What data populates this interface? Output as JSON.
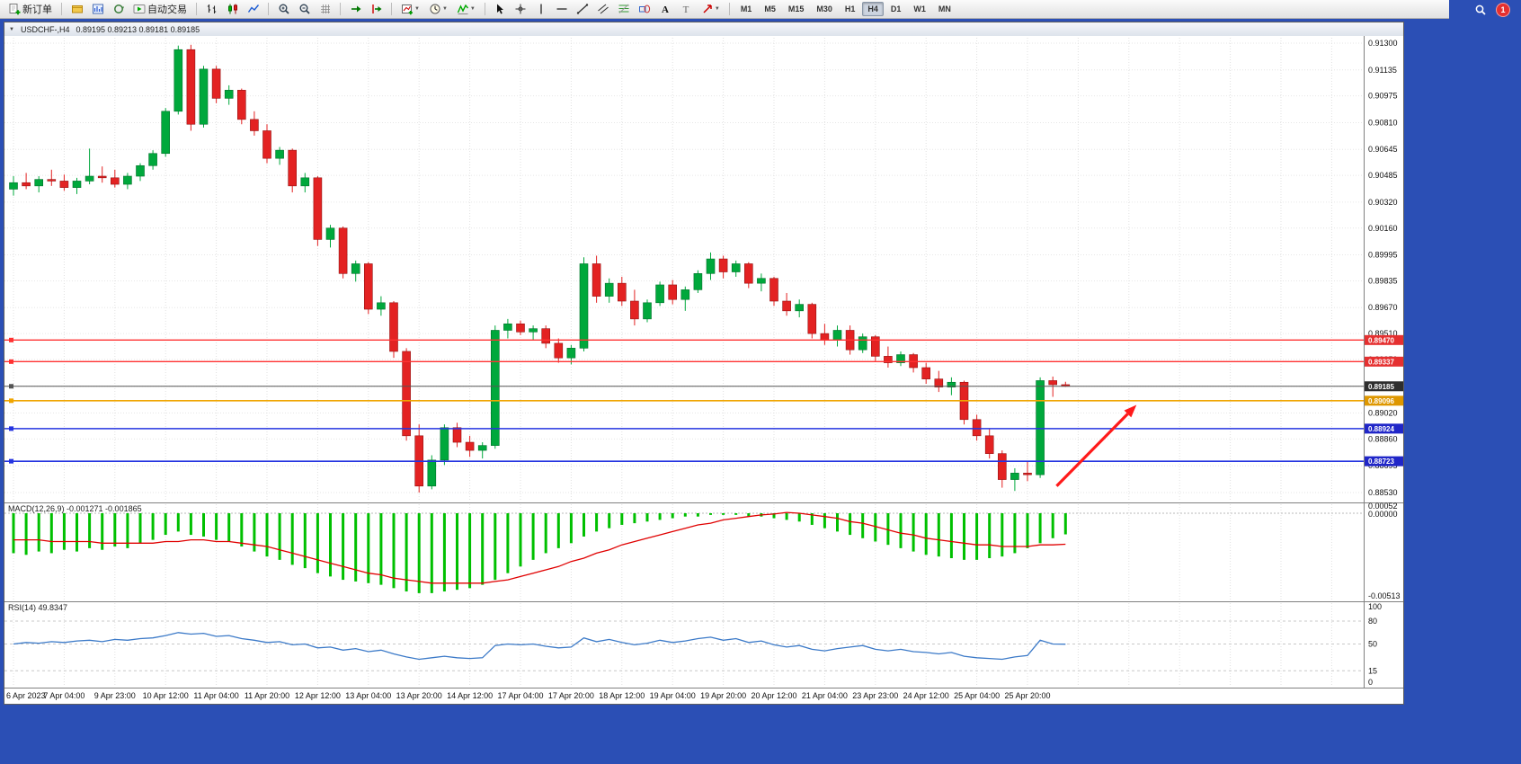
{
  "toolbar": {
    "new_order_label": "新订单",
    "autotrading_label": "自动交易",
    "buttons_groups": [
      [
        {
          "name": "new-order",
          "icon": "new-order",
          "label": "新订单"
        }
      ],
      [
        {
          "name": "charts-profile",
          "icon": "profile"
        },
        {
          "name": "market-watch",
          "icon": "market-watch"
        },
        {
          "name": "refresh",
          "icon": "refresh"
        },
        {
          "name": "autotrading",
          "icon": "autotrading",
          "label": "自动交易"
        }
      ],
      [
        {
          "name": "bar-chart",
          "icon": "bar-chart"
        },
        {
          "name": "candlestick-chart",
          "icon": "candles"
        },
        {
          "name": "line-chart",
          "icon": "line-chart"
        }
      ],
      [
        {
          "name": "zoom-in",
          "icon": "zoom-in"
        },
        {
          "name": "zoom-out",
          "icon": "zoom-out"
        },
        {
          "name": "grid",
          "icon": "grid"
        }
      ],
      [
        {
          "name": "auto-scroll",
          "icon": "auto-scroll"
        },
        {
          "name": "chart-shift",
          "icon": "chart-shift"
        }
      ],
      [
        {
          "name": "new-chart",
          "icon": "new-chart",
          "caret": true
        },
        {
          "name": "time-periods",
          "icon": "clock",
          "caret": true
        },
        {
          "name": "indicators",
          "icon": "indicators",
          "caret": true
        }
      ],
      [
        {
          "name": "cursor",
          "icon": "cursor"
        },
        {
          "name": "crosshair",
          "icon": "crosshair"
        },
        {
          "name": "vertical-line",
          "icon": "vline"
        },
        {
          "name": "horizontal-line",
          "icon": "hline"
        },
        {
          "name": "trendline",
          "icon": "trendline"
        },
        {
          "name": "equidistant-channel",
          "icon": "channel"
        },
        {
          "name": "fibonacci",
          "icon": "fibo"
        },
        {
          "name": "shapes",
          "icon": "shapes"
        },
        {
          "name": "text",
          "icon": "text"
        },
        {
          "name": "text-label",
          "icon": "label"
        },
        {
          "name": "arrows",
          "icon": "arrow-tool",
          "caret": true
        }
      ]
    ],
    "timeframes": [
      "M1",
      "M5",
      "M15",
      "M30",
      "H1",
      "H4",
      "D1",
      "W1",
      "MN"
    ],
    "active_timeframe": "H4",
    "notification_count": "1"
  },
  "chart_window": {
    "symbol_period": "USDCHF-,H4",
    "ohlc": "0.89195 0.89213 0.89181 0.89185"
  },
  "chart_data": {
    "type": "candlestick",
    "symbol": "USDCHF-",
    "timeframe": "H4",
    "price_axis": {
      "ticks": [
        "0.91300",
        "0.91135",
        "0.90975",
        "0.90810",
        "0.90645",
        "0.90485",
        "0.90320",
        "0.90160",
        "0.89995",
        "0.89835",
        "0.89670",
        "0.89510",
        "0.89350",
        "0.89185",
        "0.89020",
        "0.88860",
        "0.88695",
        "0.88530"
      ]
    },
    "x_labels": [
      "6 Apr 2023",
      "7 Apr 04:00",
      "9 Apr 23:00",
      "10 Apr 12:00",
      "11 Apr 04:00",
      "11 Apr 20:00",
      "12 Apr 12:00",
      "13 Apr 04:00",
      "13 Apr 20:00",
      "14 Apr 12:00",
      "17 Apr 04:00",
      "17 Apr 20:00",
      "18 Apr 12:00",
      "19 Apr 04:00",
      "19 Apr 20:00",
      "20 Apr 12:00",
      "21 Apr 04:00",
      "23 Apr 23:00",
      "24 Apr 12:00",
      "25 Apr 04:00",
      "25 Apr 20:00"
    ],
    "candles": [
      [
        0.904,
        0.9048,
        0.9036,
        0.9044
      ],
      [
        0.9044,
        0.905,
        0.904,
        0.9042
      ],
      [
        0.9042,
        0.9048,
        0.9038,
        0.9046
      ],
      [
        0.9046,
        0.9052,
        0.9042,
        0.9045
      ],
      [
        0.9045,
        0.9049,
        0.9039,
        0.9041
      ],
      [
        0.9041,
        0.9047,
        0.9037,
        0.9045
      ],
      [
        0.9045,
        0.9065,
        0.9043,
        0.9048
      ],
      [
        0.9048,
        0.9054,
        0.9044,
        0.9047
      ],
      [
        0.9047,
        0.9052,
        0.9041,
        0.9043
      ],
      [
        0.9043,
        0.905,
        0.904,
        0.9048
      ],
      [
        0.9048,
        0.9056,
        0.9045,
        0.90545
      ],
      [
        0.90545,
        0.9064,
        0.9052,
        0.9062
      ],
      [
        0.9062,
        0.909,
        0.906,
        0.9088
      ],
      [
        0.9088,
        0.91285,
        0.9086,
        0.9126
      ],
      [
        0.9126,
        0.9129,
        0.9076,
        0.908
      ],
      [
        0.908,
        0.9116,
        0.9078,
        0.9114
      ],
      [
        0.9114,
        0.9116,
        0.9093,
        0.9096
      ],
      [
        0.9096,
        0.9104,
        0.9092,
        0.9101
      ],
      [
        0.9101,
        0.9102,
        0.908,
        0.9083
      ],
      [
        0.9083,
        0.9088,
        0.9073,
        0.9076
      ],
      [
        0.9076,
        0.908,
        0.9056,
        0.9059
      ],
      [
        0.9059,
        0.9066,
        0.9055,
        0.9064
      ],
      [
        0.9064,
        0.9065,
        0.9038,
        0.9042
      ],
      [
        0.9042,
        0.905,
        0.9038,
        0.9047
      ],
      [
        0.9047,
        0.9048,
        0.9005,
        0.9009
      ],
      [
        0.9009,
        0.9018,
        0.9004,
        0.9016
      ],
      [
        0.9016,
        0.9017,
        0.8985,
        0.8988
      ],
      [
        0.8988,
        0.8996,
        0.8983,
        0.8994
      ],
      [
        0.8994,
        0.8995,
        0.8963,
        0.8966
      ],
      [
        0.8966,
        0.8974,
        0.8962,
        0.897
      ],
      [
        0.897,
        0.8971,
        0.8936,
        0.894
      ],
      [
        0.894,
        0.8942,
        0.8885,
        0.8888
      ],
      [
        0.8888,
        0.8895,
        0.8853,
        0.8857
      ],
      [
        0.8857,
        0.8876,
        0.8855,
        0.8873
      ],
      [
        0.8873,
        0.8895,
        0.887,
        0.8893
      ],
      [
        0.8893,
        0.8896,
        0.8881,
        0.8884
      ],
      [
        0.8884,
        0.8888,
        0.8875,
        0.8879
      ],
      [
        0.8879,
        0.8884,
        0.8874,
        0.8882
      ],
      [
        0.8882,
        0.8956,
        0.888,
        0.8953
      ],
      [
        0.8953,
        0.896,
        0.8948,
        0.8957
      ],
      [
        0.8957,
        0.8959,
        0.895,
        0.8952
      ],
      [
        0.8952,
        0.8956,
        0.8947,
        0.8954
      ],
      [
        0.8954,
        0.8956,
        0.8942,
        0.8945
      ],
      [
        0.8945,
        0.8948,
        0.8933,
        0.8936
      ],
      [
        0.8936,
        0.8944,
        0.8932,
        0.8942
      ],
      [
        0.8942,
        0.8998,
        0.894,
        0.8994
      ],
      [
        0.8994,
        0.8999,
        0.897,
        0.8974
      ],
      [
        0.8974,
        0.8985,
        0.897,
        0.8982
      ],
      [
        0.8982,
        0.8986,
        0.8968,
        0.8971
      ],
      [
        0.8971,
        0.8978,
        0.8956,
        0.896
      ],
      [
        0.896,
        0.8972,
        0.8958,
        0.897
      ],
      [
        0.897,
        0.8983,
        0.8968,
        0.8981
      ],
      [
        0.8981,
        0.8984,
        0.8969,
        0.8972
      ],
      [
        0.8972,
        0.898,
        0.8965,
        0.8978
      ],
      [
        0.8978,
        0.899,
        0.8976,
        0.8988
      ],
      [
        0.8988,
        0.9001,
        0.8984,
        0.8997
      ],
      [
        0.8997,
        0.8999,
        0.8985,
        0.8989
      ],
      [
        0.8989,
        0.8996,
        0.8986,
        0.8994
      ],
      [
        0.8994,
        0.8995,
        0.8979,
        0.8982
      ],
      [
        0.8982,
        0.8988,
        0.8977,
        0.8985
      ],
      [
        0.8985,
        0.8986,
        0.8968,
        0.8971
      ],
      [
        0.8971,
        0.8976,
        0.8962,
        0.8965
      ],
      [
        0.8965,
        0.8972,
        0.8961,
        0.8969
      ],
      [
        0.8969,
        0.897,
        0.8948,
        0.8951
      ],
      [
        0.8951,
        0.8957,
        0.8944,
        0.8947
      ],
      [
        0.8947,
        0.8956,
        0.8943,
        0.8953
      ],
      [
        0.8953,
        0.8956,
        0.8938,
        0.8941
      ],
      [
        0.8941,
        0.8951,
        0.8939,
        0.8949
      ],
      [
        0.8949,
        0.895,
        0.8934,
        0.8937
      ],
      [
        0.8937,
        0.8943,
        0.893,
        0.8933
      ],
      [
        0.8933,
        0.894,
        0.8931,
        0.8938
      ],
      [
        0.8938,
        0.8939,
        0.8927,
        0.893
      ],
      [
        0.893,
        0.8933,
        0.892,
        0.8923
      ],
      [
        0.8923,
        0.8928,
        0.8915,
        0.8918
      ],
      [
        0.8918,
        0.8924,
        0.8913,
        0.8921
      ],
      [
        0.8921,
        0.8922,
        0.8895,
        0.8898
      ],
      [
        0.8898,
        0.8901,
        0.8885,
        0.8888
      ],
      [
        0.8888,
        0.8892,
        0.8874,
        0.8877
      ],
      [
        0.8877,
        0.8879,
        0.8856,
        0.8861
      ],
      [
        0.8861,
        0.8868,
        0.8854,
        0.8865
      ],
      [
        0.8865,
        0.8872,
        0.886,
        0.8864
      ],
      [
        0.8864,
        0.8924,
        0.8862,
        0.8922
      ],
      [
        0.8922,
        0.89245,
        0.8912,
        0.89195
      ],
      [
        0.89195,
        0.89213,
        0.89181,
        0.89185
      ]
    ],
    "horizontal_lines": [
      {
        "price": 0.8947,
        "label": "0.89470",
        "color": "#FF3232",
        "tag_bg": "#E53030",
        "width": 1.3
      },
      {
        "price": 0.89337,
        "label": "0.89337",
        "color": "#FF3232",
        "tag_bg": "#E53030",
        "width": 1.3
      },
      {
        "price": 0.89185,
        "label": "0.89185",
        "color": "#555555",
        "tag_bg": "#2e2e2e",
        "width": 1
      },
      {
        "price": 0.89096,
        "label": "0.89096",
        "color": "#F0A500",
        "tag_bg": "#DE9700",
        "width": 1.6
      },
      {
        "price": 0.88924,
        "label": "0.88924",
        "color": "#2534E0",
        "tag_bg": "#2026C8",
        "width": 1.6
      },
      {
        "price": 0.88723,
        "label": "0.88723",
        "color": "#2534E0",
        "tag_bg": "#2026C8",
        "width": 1.6
      }
    ],
    "annotations": [
      {
        "type": "arrow",
        "color": "#FF1A1A",
        "from_index": 82.3,
        "from_price": 0.8857,
        "to_index": 88.6,
        "to_price": 0.8907
      }
    ],
    "macd": {
      "title": "MACD(12,26,9)",
      "value_main": "-0.001271",
      "value_signal": "-0.001865",
      "scale_max": "0.00052",
      "scale_zero": "0.00000",
      "scale_min": "-0.00513",
      "histogram": [
        -0.0024,
        -0.0025,
        -0.0023,
        -0.0024,
        -0.0022,
        -0.0023,
        -0.0021,
        -0.0022,
        -0.002,
        -0.0021,
        -0.0018,
        -0.0016,
        -0.0013,
        -0.0011,
        -0.0013,
        -0.0014,
        -0.0016,
        -0.0017,
        -0.002,
        -0.0023,
        -0.0026,
        -0.0028,
        -0.0031,
        -0.0033,
        -0.0036,
        -0.0038,
        -0.004,
        -0.0041,
        -0.0042,
        -0.0043,
        -0.0045,
        -0.0047,
        -0.0048,
        -0.0048,
        -0.0047,
        -0.0046,
        -0.0045,
        -0.0043,
        -0.004,
        -0.0036,
        -0.0032,
        -0.0028,
        -0.0024,
        -0.0021,
        -0.0018,
        -0.0014,
        -0.0011,
        -0.0009,
        -0.0007,
        -0.0006,
        -0.0005,
        -0.0004,
        -0.0003,
        -0.0002,
        -0.0002,
        -0.0001,
        -0.0001,
        -0.0001,
        -0.0002,
        -0.0002,
        -0.0003,
        -0.0004,
        -0.0005,
        -0.0007,
        -0.0009,
        -0.0011,
        -0.0013,
        -0.0015,
        -0.0017,
        -0.0019,
        -0.0021,
        -0.0023,
        -0.0025,
        -0.0026,
        -0.0027,
        -0.0028,
        -0.0028,
        -0.0027,
        -0.0026,
        -0.0024,
        -0.0021,
        -0.0018,
        -0.0015,
        -0.00127
      ],
      "signal": [
        -0.0016,
        -0.0016,
        -0.0016,
        -0.0017,
        -0.0017,
        -0.0017,
        -0.0017,
        -0.0018,
        -0.0018,
        -0.0018,
        -0.0018,
        -0.0018,
        -0.0017,
        -0.0017,
        -0.0016,
        -0.0016,
        -0.0017,
        -0.0017,
        -0.0018,
        -0.0019,
        -0.002,
        -0.0022,
        -0.0024,
        -0.0026,
        -0.0028,
        -0.003,
        -0.0032,
        -0.0034,
        -0.0036,
        -0.0037,
        -0.0039,
        -0.004,
        -0.0041,
        -0.0042,
        -0.0042,
        -0.0042,
        -0.0042,
        -0.0042,
        -0.0041,
        -0.004,
        -0.0038,
        -0.0036,
        -0.0034,
        -0.0032,
        -0.0029,
        -0.0027,
        -0.0024,
        -0.0022,
        -0.0019,
        -0.0017,
        -0.0015,
        -0.0013,
        -0.0011,
        -0.0009,
        -0.0007,
        -0.0006,
        -0.0004,
        -0.0003,
        -0.0002,
        -0.0001,
        -5e-05,
        5e-05,
        0.0,
        -0.0001,
        -0.0002,
        -0.0003,
        -0.0005,
        -0.0006,
        -0.0008,
        -0.001,
        -0.0012,
        -0.0013,
        -0.0015,
        -0.0016,
        -0.0017,
        -0.0018,
        -0.0019,
        -0.0019,
        -0.002,
        -0.002,
        -0.002,
        -0.0019,
        -0.0019,
        -0.001865
      ]
    },
    "rsi": {
      "title": "RSI(14)",
      "value": "49.8347",
      "scale_top": "100",
      "scale_bottom": "0",
      "levels": [
        {
          "v": 80,
          "label": "80"
        },
        {
          "v": 50,
          "label": "50"
        },
        {
          "v": 15,
          "label": "15"
        }
      ],
      "values": [
        50,
        52,
        51,
        53,
        52,
        54,
        55,
        53,
        56,
        55,
        57,
        58,
        61,
        65,
        63,
        64,
        60,
        61,
        57,
        55,
        52,
        53,
        49,
        50,
        45,
        46,
        42,
        44,
        40,
        42,
        37,
        33,
        30,
        32,
        34,
        32,
        31,
        32,
        48,
        50,
        49,
        50,
        47,
        45,
        46,
        58,
        53,
        56,
        52,
        49,
        51,
        55,
        52,
        54,
        57,
        59,
        55,
        57,
        52,
        54,
        49,
        46,
        48,
        43,
        41,
        44,
        46,
        48,
        43,
        41,
        43,
        40,
        39,
        37,
        39,
        34,
        32,
        31,
        30,
        33,
        35,
        55,
        50,
        49.8
      ]
    },
    "colors": {
      "bull": "#00A83C",
      "bear": "#E32222",
      "macd_hist": "#00C000",
      "macd_signal": "#E00000",
      "rsi_line": "#3C7AC8"
    }
  }
}
